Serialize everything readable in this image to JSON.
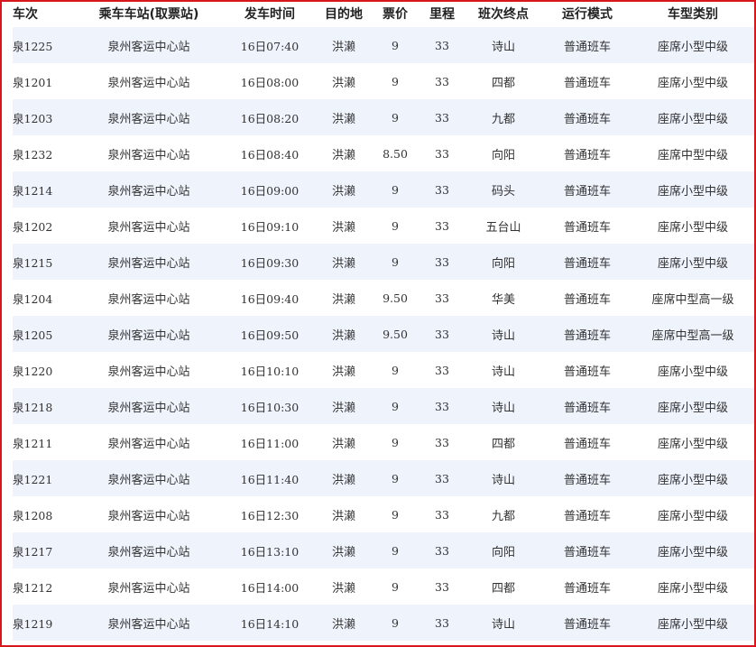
{
  "headers": [
    "车次",
    "乘车车站(取票站)",
    "发车时间",
    "目的地",
    "票价",
    "里程",
    "班次终点",
    "运行模式",
    "车型类别"
  ],
  "rows": [
    [
      "泉1225",
      "泉州客运中心站",
      "16日07:40",
      "洪濑",
      "9",
      "33",
      "诗山",
      "普通班车",
      "座席小型中级"
    ],
    [
      "泉1201",
      "泉州客运中心站",
      "16日08:00",
      "洪濑",
      "9",
      "33",
      "四都",
      "普通班车",
      "座席小型中级"
    ],
    [
      "泉1203",
      "泉州客运中心站",
      "16日08:20",
      "洪濑",
      "9",
      "33",
      "九都",
      "普通班车",
      "座席小型中级"
    ],
    [
      "泉1232",
      "泉州客运中心站",
      "16日08:40",
      "洪濑",
      "8.50",
      "33",
      "向阳",
      "普通班车",
      "座席中型中级"
    ],
    [
      "泉1214",
      "泉州客运中心站",
      "16日09:00",
      "洪濑",
      "9",
      "33",
      "码头",
      "普通班车",
      "座席小型中级"
    ],
    [
      "泉1202",
      "泉州客运中心站",
      "16日09:10",
      "洪濑",
      "9",
      "33",
      "五台山",
      "普通班车",
      "座席小型中级"
    ],
    [
      "泉1215",
      "泉州客运中心站",
      "16日09:30",
      "洪濑",
      "9",
      "33",
      "向阳",
      "普通班车",
      "座席小型中级"
    ],
    [
      "泉1204",
      "泉州客运中心站",
      "16日09:40",
      "洪濑",
      "9.50",
      "33",
      "华美",
      "普通班车",
      "座席中型高一级"
    ],
    [
      "泉1205",
      "泉州客运中心站",
      "16日09:50",
      "洪濑",
      "9.50",
      "33",
      "诗山",
      "普通班车",
      "座席中型高一级"
    ],
    [
      "泉1220",
      "泉州客运中心站",
      "16日10:10",
      "洪濑",
      "9",
      "33",
      "诗山",
      "普通班车",
      "座席小型中级"
    ],
    [
      "泉1218",
      "泉州客运中心站",
      "16日10:30",
      "洪濑",
      "9",
      "33",
      "诗山",
      "普通班车",
      "座席小型中级"
    ],
    [
      "泉1211",
      "泉州客运中心站",
      "16日11:00",
      "洪濑",
      "9",
      "33",
      "四都",
      "普通班车",
      "座席小型中级"
    ],
    [
      "泉1221",
      "泉州客运中心站",
      "16日11:40",
      "洪濑",
      "9",
      "33",
      "诗山",
      "普通班车",
      "座席小型中级"
    ],
    [
      "泉1208",
      "泉州客运中心站",
      "16日12:30",
      "洪濑",
      "9",
      "33",
      "九都",
      "普通班车",
      "座席小型中级"
    ],
    [
      "泉1217",
      "泉州客运中心站",
      "16日13:10",
      "洪濑",
      "9",
      "33",
      "向阳",
      "普通班车",
      "座席小型中级"
    ],
    [
      "泉1212",
      "泉州客运中心站",
      "16日14:00",
      "洪濑",
      "9",
      "33",
      "四都",
      "普通班车",
      "座席小型中级"
    ],
    [
      "泉1219",
      "泉州客运中心站",
      "16日14:10",
      "洪濑",
      "9",
      "33",
      "诗山",
      "普通班车",
      "座席小型中级"
    ]
  ],
  "colors": {
    "border": "#d9161b",
    "row_alt": "#eef3fc"
  }
}
